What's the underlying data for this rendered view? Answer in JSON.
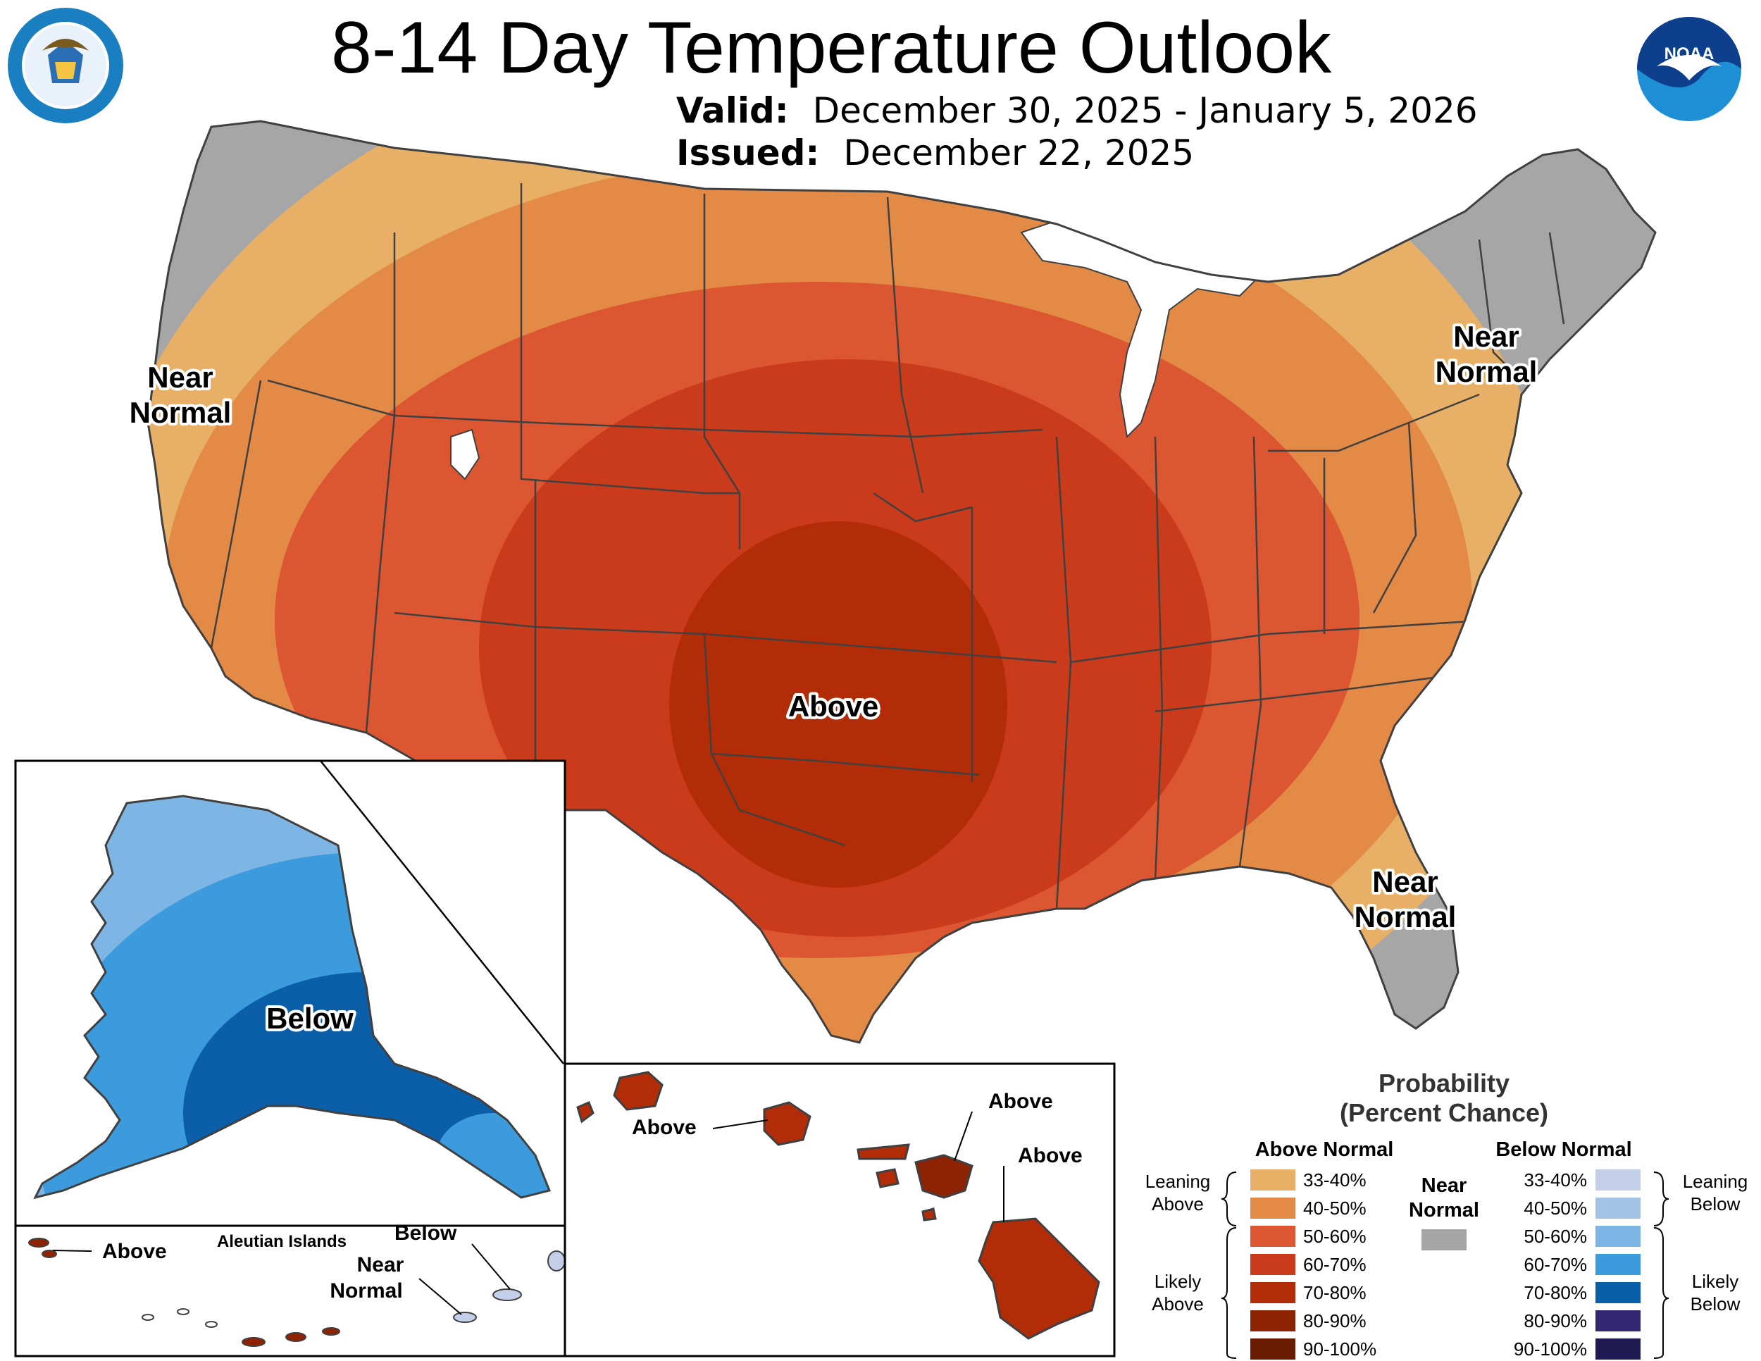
{
  "header": {
    "title": "8-14 Day Temperature Outlook",
    "valid_label": "Valid:",
    "valid_dates": "December 30, 2025 - January 5, 2026",
    "issued_label": "Issued:",
    "issued_date": "December 22, 2025"
  },
  "logos": {
    "commerce_seal_text": "DEPARTMENT OF COMMERCE · UNITED STATES OF AMERICA",
    "noaa_text": "NOAA"
  },
  "map_labels": {
    "west_near_normal_1": "Near",
    "west_near_normal_2": "Normal",
    "east_near_normal_1": "Near",
    "east_near_normal_2": "Normal",
    "florida_near_normal_1": "Near",
    "florida_near_normal_2": "Normal",
    "central_above": "Above",
    "alaska_below": "Below",
    "aleutian_title": "Aleutian Islands",
    "aleutian_above": "Above",
    "aleutian_below": "Below",
    "aleutian_near_1": "Near",
    "aleutian_near_2": "Normal",
    "hawaii_above_1": "Above",
    "hawaii_above_2": "Above",
    "hawaii_above_3": "Above"
  },
  "legend": {
    "title_1": "Probability",
    "title_2": "(Percent Chance)",
    "above_header": "Above Normal",
    "below_header": "Below Normal",
    "near_header_1": "Near",
    "near_header_2": "Normal",
    "leaning_above_1": "Leaning",
    "leaning_above_2": "Above",
    "likely_above_1": "Likely",
    "likely_above_2": "Above",
    "leaning_below_1": "Leaning",
    "leaning_below_2": "Below",
    "likely_below_1": "Likely",
    "likely_below_2": "Below",
    "above_bins": [
      {
        "label": "33-40%",
        "color": "#e8b067"
      },
      {
        "label": "40-50%",
        "color": "#e48a47"
      },
      {
        "label": "50-60%",
        "color": "#dc5632"
      },
      {
        "label": "60-70%",
        "color": "#c93b1b"
      },
      {
        "label": "70-80%",
        "color": "#b32c08"
      },
      {
        "label": "80-90%",
        "color": "#8e2303"
      },
      {
        "label": "90-100%",
        "color": "#6b1a02"
      }
    ],
    "below_bins": [
      {
        "label": "33-40%",
        "color": "#c3cee8"
      },
      {
        "label": "40-50%",
        "color": "#a4c3e4"
      },
      {
        "label": "50-60%",
        "color": "#7db5e4"
      },
      {
        "label": "60-70%",
        "color": "#3c9bdc"
      },
      {
        "label": "70-80%",
        "color": "#0b5ea8"
      },
      {
        "label": "80-90%",
        "color": "#332773"
      },
      {
        "label": "90-100%",
        "color": "#1f1a52"
      }
    ],
    "near_color": "#a5a5a5"
  },
  "colors": {
    "near_normal_gray": "#a6a6a6",
    "state_border": "#404040"
  }
}
